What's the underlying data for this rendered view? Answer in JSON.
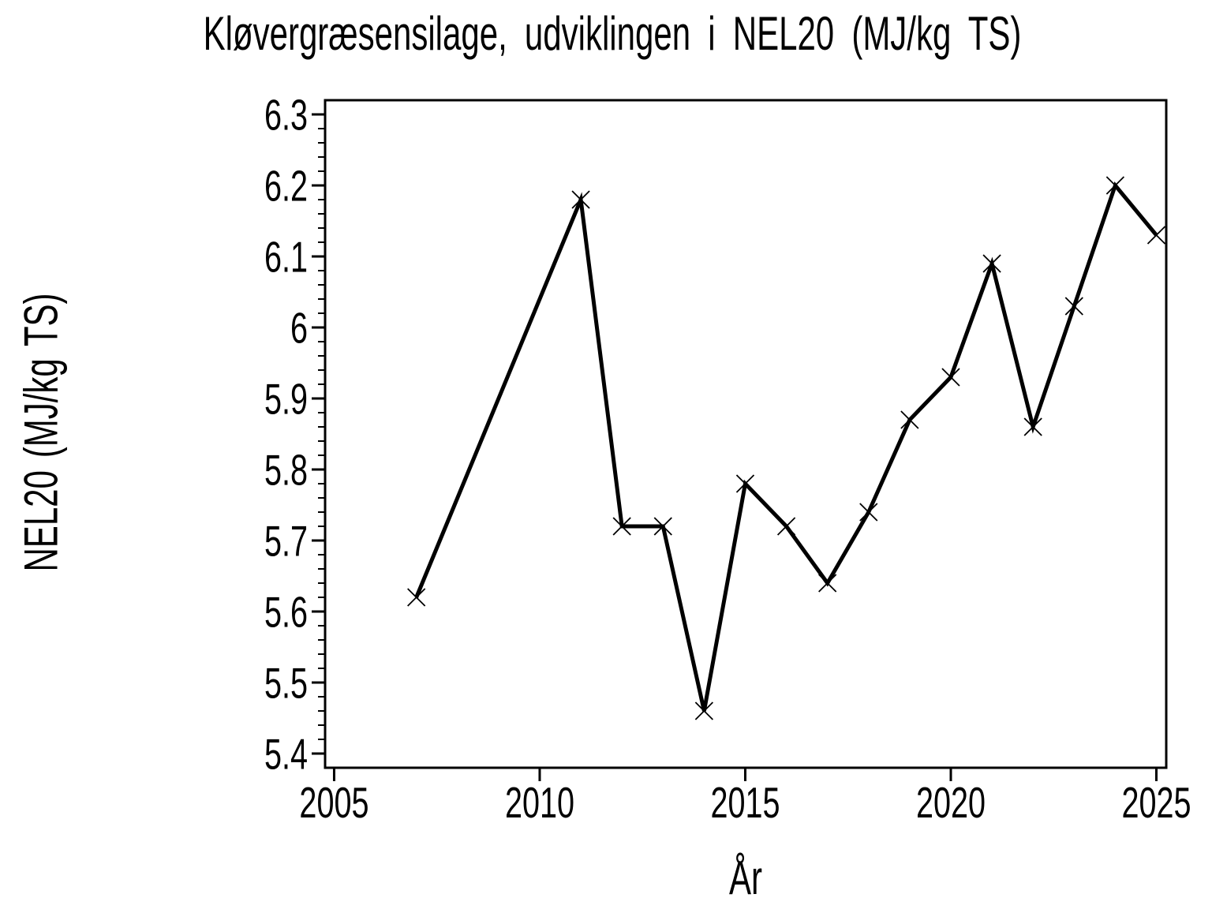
{
  "colors": {
    "foreground": "#000000",
    "background": "#ffffff"
  },
  "chart_data": {
    "type": "line",
    "title": "Kløvergræsensilage, udviklingen i NEL20 (MJ/kg TS)",
    "xlabel": "År",
    "ylabel": "NEL20 (MJ/kg TS)",
    "marker": "x",
    "line_color": "#000000",
    "marker_color": "#000000",
    "grid": false,
    "legend": null,
    "xlim": [
      2004.78,
      2025.24
    ],
    "ylim": [
      5.38,
      6.32
    ],
    "x": [
      2007,
      2011,
      2012,
      2013,
      2014,
      2015,
      2016,
      2017,
      2018,
      2019,
      2020,
      2021,
      2022,
      2023,
      2024,
      2025
    ],
    "y": [
      5.62,
      6.18,
      5.72,
      5.72,
      5.46,
      5.78,
      5.72,
      5.64,
      5.74,
      5.87,
      5.93,
      6.09,
      5.86,
      6.03,
      6.2,
      6.13
    ],
    "x_ticks": [
      {
        "value": 2005,
        "label": "2005"
      },
      {
        "value": 2010,
        "label": "2010"
      },
      {
        "value": 2015,
        "label": "2015"
      },
      {
        "value": 2020,
        "label": "2020"
      },
      {
        "value": 2025,
        "label": "2025"
      }
    ],
    "y_ticks": [
      {
        "value": 5.4,
        "label": "5.4"
      },
      {
        "value": 5.5,
        "label": "5.5"
      },
      {
        "value": 5.6,
        "label": "5.6"
      },
      {
        "value": 5.7,
        "label": "5.7"
      },
      {
        "value": 5.8,
        "label": "5.8"
      },
      {
        "value": 5.9,
        "label": "5.9"
      },
      {
        "value": 6.0,
        "label": "6"
      },
      {
        "value": 6.1,
        "label": "6.1"
      },
      {
        "value": 6.2,
        "label": "6.2"
      },
      {
        "value": 6.3,
        "label": "6.3"
      }
    ],
    "y_minor_tick_step": 0.02,
    "y_minor_tick_range": [
      5.4,
      6.3
    ]
  }
}
